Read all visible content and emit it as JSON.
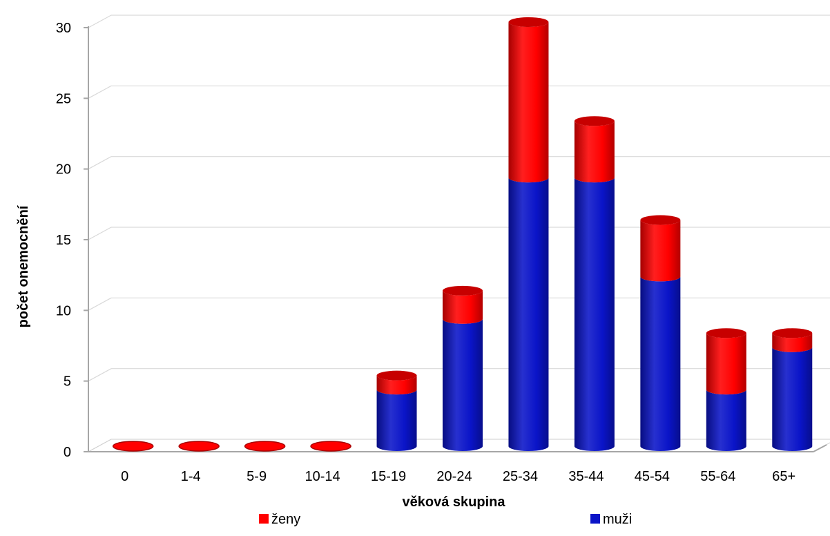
{
  "chart_data": {
    "type": "bar",
    "stacked": true,
    "style": "3d-cylinder",
    "categories": [
      "0",
      "1-4",
      "5-9",
      "10-14",
      "15-19",
      "20-24",
      "25-34",
      "35-44",
      "45-54",
      "55-64",
      "65+"
    ],
    "series": [
      {
        "name": "muži",
        "color": "#0a14c8",
        "values": [
          0,
          0,
          0,
          0,
          4,
          9,
          19,
          19,
          12,
          4,
          7
        ]
      },
      {
        "name": "ženy",
        "color": "#ff0000",
        "values": [
          0,
          0,
          0,
          0,
          1,
          2,
          11,
          4,
          4,
          4,
          1
        ]
      }
    ],
    "title": "",
    "xlabel": "věková skupina",
    "ylabel": "počet onemocnění",
    "ylim": [
      0,
      30
    ],
    "yticks": [
      0,
      5,
      10,
      15,
      20,
      25,
      30
    ],
    "grid": true,
    "legend_position": "bottom",
    "legend_order": [
      "ženy",
      "muži"
    ]
  }
}
